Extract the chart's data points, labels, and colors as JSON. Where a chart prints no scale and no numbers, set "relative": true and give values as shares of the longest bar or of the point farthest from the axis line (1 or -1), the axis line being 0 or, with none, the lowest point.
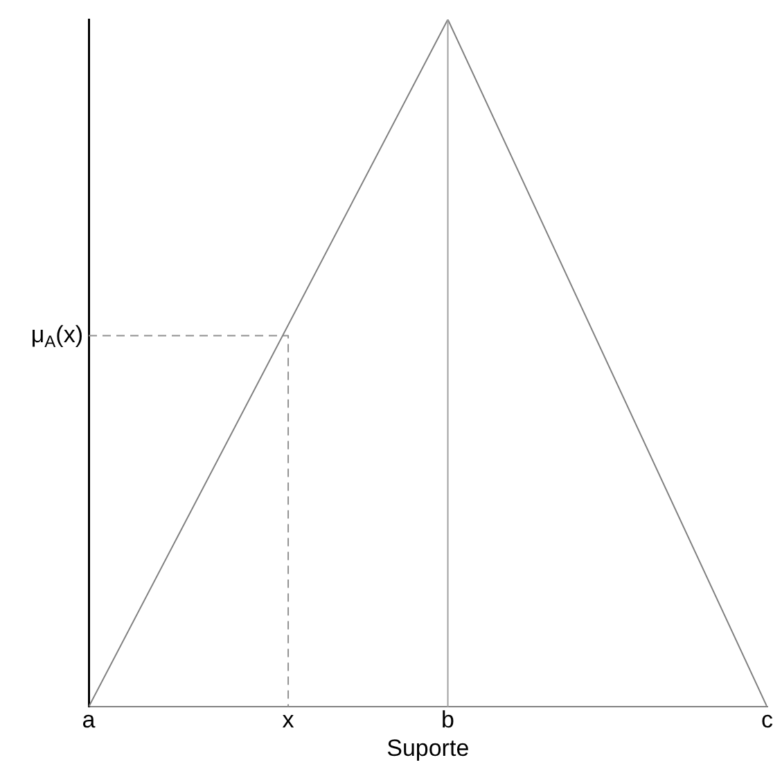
{
  "chart_data": {
    "type": "line",
    "relative": true,
    "xlabel": "Suporte",
    "categories": [
      "a",
      null,
      null,
      null,
      null,
      "x",
      null,
      null,
      null,
      "b",
      null,
      null,
      null,
      null,
      null,
      null,
      null,
      "c"
    ],
    "series": [
      {
        "color": "#808080",
        "x": [
          "a",
          "b",
          "c"
        ],
        "values": [
          0,
          1,
          0
        ]
      },
      {
        "color": "#909090",
        "x": [
          "a",
          "x",
          "x"
        ],
        "values": [
          0.54,
          0.54,
          0
        ],
        "line_style": "dashed"
      }
    ],
    "ref_lines": [
      {
        "axis": "x",
        "value": "b",
        "color": "#a0a0a0",
        "line_style": "solid"
      }
    ],
    "annotations": [
      "μ$_{A}$(x)"
    ],
    "grid": false,
    "legend": false,
    "marker": "none",
    "line_style": "solid"
  }
}
